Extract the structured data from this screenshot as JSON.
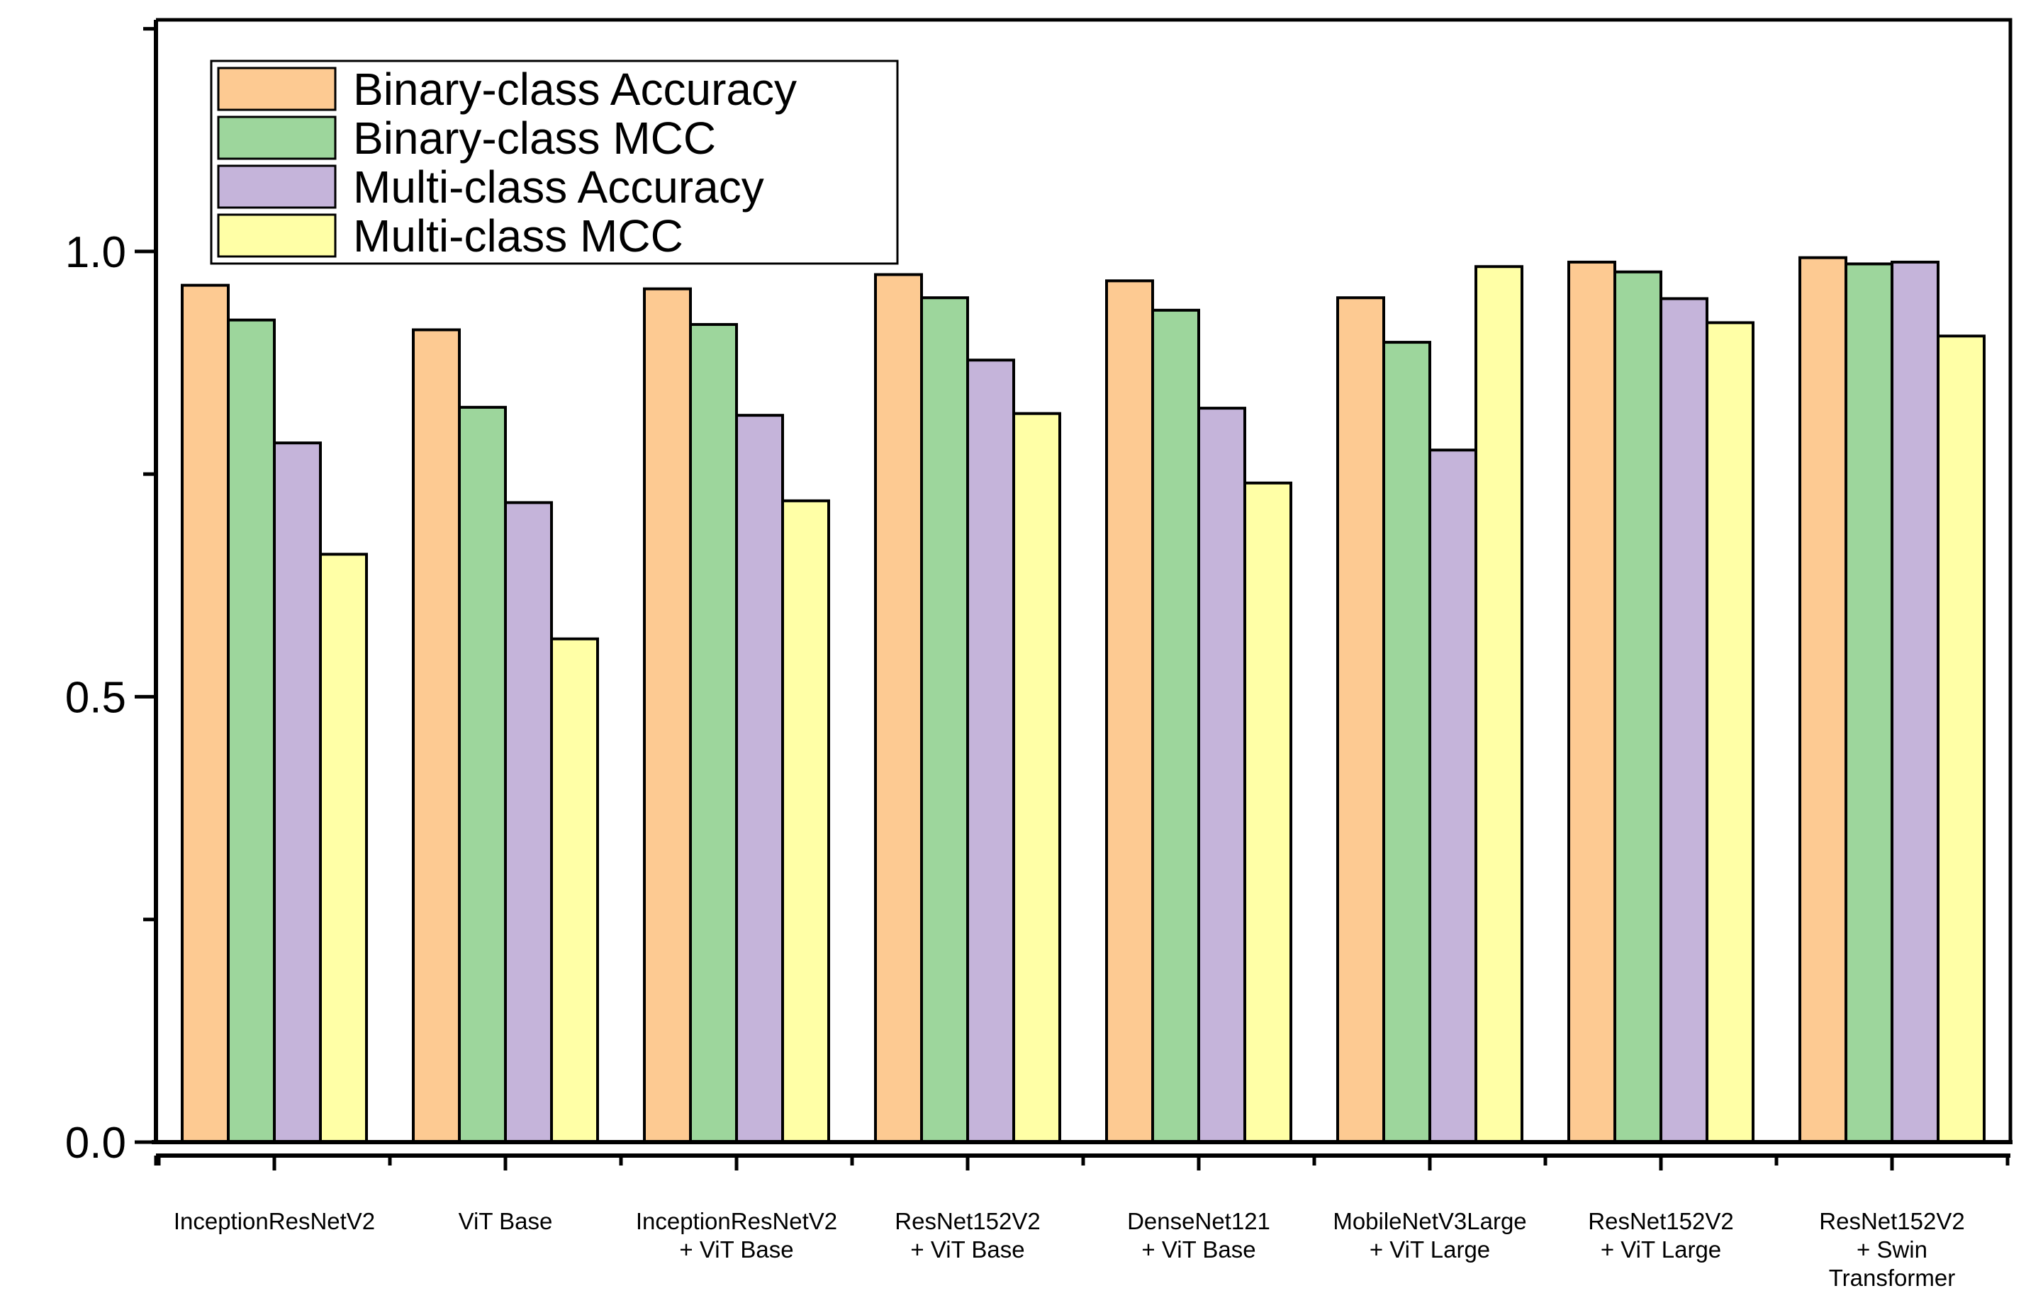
{
  "chart_data": {
    "type": "bar",
    "title": "",
    "xlabel": "",
    "ylabel": "",
    "ylim": [
      0,
      1.26
    ],
    "yticks": [
      0.0,
      0.5,
      1.0
    ],
    "ytick_labels": [
      "0.0",
      "0.5",
      "1.0"
    ],
    "grid": false,
    "legend_position": "top-left",
    "categories": [
      [
        "InceptionResNetV2"
      ],
      [
        "ViT Base"
      ],
      [
        "InceptionResNetV2",
        "+ ViT Base"
      ],
      [
        "ResNet152V2",
        "+ ViT Base"
      ],
      [
        "DenseNet121",
        "+ ViT Base"
      ],
      [
        "MobileNetV3Large",
        "+ ViT Large"
      ],
      [
        "ResNet152V2",
        "+ ViT Large"
      ],
      [
        "ResNet152V2",
        "+ Swin",
        "Transformer"
      ]
    ],
    "series": [
      {
        "name": "Binary-class Accuracy",
        "color": "#FDCA92",
        "values": [
          0.962,
          0.912,
          0.958,
          0.974,
          0.967,
          0.948,
          0.988,
          0.993
        ]
      },
      {
        "name": "Binary-class MCC",
        "color": "#9DD69C",
        "values": [
          0.923,
          0.825,
          0.918,
          0.948,
          0.934,
          0.898,
          0.977,
          0.986
        ]
      },
      {
        "name": "Multi-class Accuracy",
        "color": "#C5B4DA",
        "values": [
          0.785,
          0.718,
          0.816,
          0.878,
          0.824,
          0.777,
          0.947,
          0.988
        ]
      },
      {
        "name": "Multi-class MCC",
        "color": "#FFFFA6",
        "values": [
          0.66,
          0.565,
          0.72,
          0.818,
          0.74,
          0.983,
          0.92,
          0.905
        ]
      }
    ]
  }
}
